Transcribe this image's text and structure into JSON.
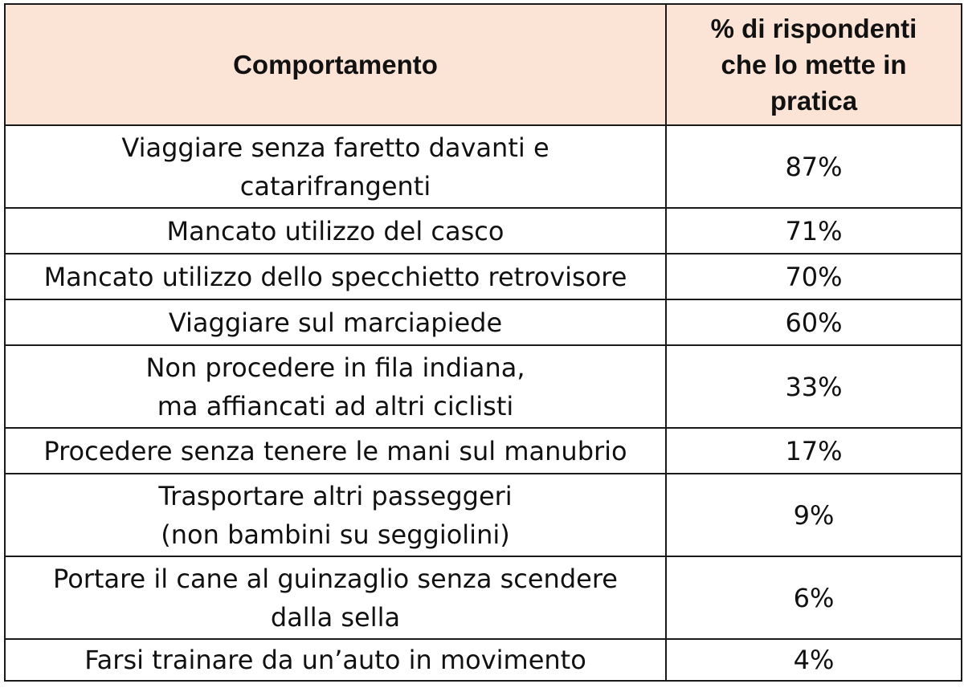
{
  "table": {
    "headers": {
      "behavior": "Comportamento",
      "percent": "% di rispondenti\nche lo mette in\npratica"
    },
    "rows": [
      {
        "behavior": "Viaggiare senza faretto davanti e\ncatarifrangenti",
        "percent": "87%"
      },
      {
        "behavior": "Mancato utilizzo del casco",
        "percent": "71%"
      },
      {
        "behavior": "Mancato utilizzo dello specchietto retrovisore",
        "percent": "70%"
      },
      {
        "behavior": "Viaggiare sul marciapiede",
        "percent": "60%"
      },
      {
        "behavior": "Non procedere in fila indiana,\nma affiancati ad altri ciclisti",
        "percent": "33%"
      },
      {
        "behavior": "Procedere senza tenere le mani sul manubrio",
        "percent": "17%"
      },
      {
        "behavior": "Trasportare altri passeggeri\n(non bambini su seggiolini)",
        "percent": "9%"
      },
      {
        "behavior": "Portare il cane al guinzaglio senza scendere\ndalla sella",
        "percent": "6%"
      },
      {
        "behavior": "Farsi trainare da un’auto in movimento",
        "percent": "4%"
      }
    ]
  },
  "colors": {
    "header_background": "#fbe4d6",
    "border": "#1a1a1a",
    "text": "#111111"
  }
}
